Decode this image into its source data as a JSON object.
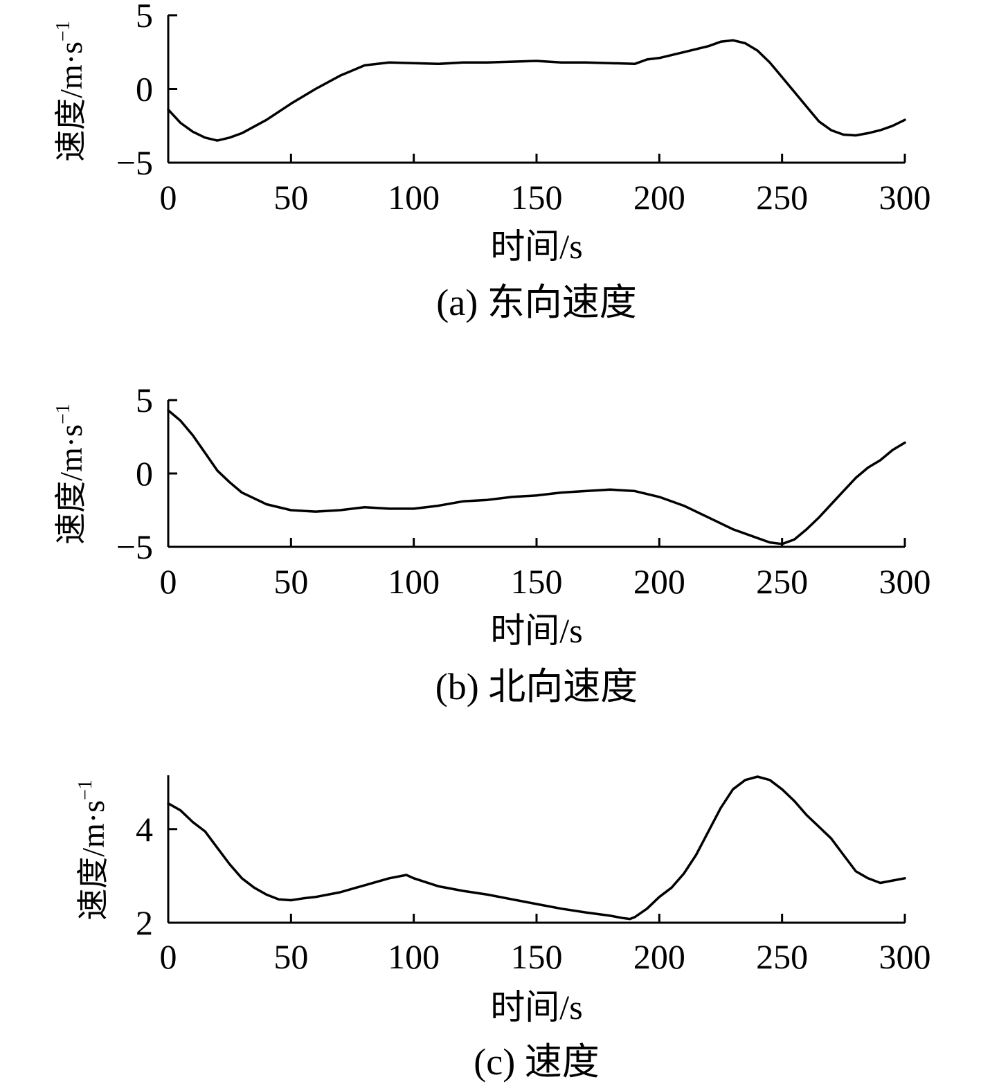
{
  "chart_data": [
    {
      "type": "line",
      "caption": "(a) 东向速度",
      "xlabel": "时间/s",
      "ylabel": "速度/m·s",
      "ylabel_sup": "−1",
      "xlim": [
        0,
        300
      ],
      "ylim": [
        -5,
        5
      ],
      "xticks": [
        0,
        50,
        100,
        150,
        200,
        250,
        300
      ],
      "xtick_labels": [
        "0",
        "50",
        "100",
        "150",
        "200",
        "250",
        "300"
      ],
      "yticks": [
        -5,
        0,
        5
      ],
      "ytick_labels": [
        "−5",
        "0",
        "5"
      ],
      "series": [
        {
          "x": [
            0,
            5,
            10,
            15,
            20,
            25,
            30,
            40,
            50,
            60,
            70,
            80,
            90,
            100,
            110,
            120,
            130,
            140,
            150,
            160,
            170,
            180,
            190,
            195,
            200,
            210,
            220,
            225,
            230,
            235,
            240,
            245,
            250,
            255,
            260,
            265,
            270,
            275,
            280,
            285,
            290,
            295,
            300
          ],
          "y": [
            -1.4,
            -2.3,
            -2.9,
            -3.3,
            -3.5,
            -3.3,
            -3.0,
            -2.1,
            -1.0,
            0.0,
            0.9,
            1.6,
            1.8,
            1.75,
            1.7,
            1.8,
            1.8,
            1.85,
            1.9,
            1.8,
            1.8,
            1.75,
            1.7,
            2.0,
            2.1,
            2.5,
            2.9,
            3.2,
            3.3,
            3.1,
            2.6,
            1.8,
            0.8,
            -0.2,
            -1.2,
            -2.2,
            -2.8,
            -3.1,
            -3.15,
            -3.0,
            -2.8,
            -2.5,
            -2.1
          ]
        }
      ]
    },
    {
      "type": "line",
      "caption": "(b) 北向速度",
      "xlabel": "时间/s",
      "ylabel": "速度/m·s",
      "ylabel_sup": "−1",
      "xlim": [
        0,
        300
      ],
      "ylim": [
        -5,
        5
      ],
      "xticks": [
        0,
        50,
        100,
        150,
        200,
        250,
        300
      ],
      "xtick_labels": [
        "0",
        "50",
        "100",
        "150",
        "200",
        "250",
        "300"
      ],
      "yticks": [
        -5,
        0,
        5
      ],
      "ytick_labels": [
        "−5",
        "0",
        "5"
      ],
      "series": [
        {
          "x": [
            0,
            5,
            10,
            15,
            20,
            25,
            30,
            40,
            50,
            60,
            70,
            80,
            90,
            100,
            110,
            120,
            130,
            140,
            150,
            160,
            170,
            180,
            190,
            200,
            210,
            220,
            230,
            240,
            245,
            250,
            255,
            260,
            265,
            270,
            275,
            280,
            285,
            290,
            295,
            300
          ],
          "y": [
            4.3,
            3.6,
            2.6,
            1.4,
            0.2,
            -0.6,
            -1.3,
            -2.1,
            -2.5,
            -2.6,
            -2.5,
            -2.3,
            -2.4,
            -2.4,
            -2.2,
            -1.9,
            -1.8,
            -1.6,
            -1.5,
            -1.3,
            -1.2,
            -1.1,
            -1.2,
            -1.6,
            -2.2,
            -3.0,
            -3.8,
            -4.4,
            -4.7,
            -4.8,
            -4.5,
            -3.8,
            -3.0,
            -2.1,
            -1.2,
            -0.3,
            0.4,
            0.9,
            1.6,
            2.1
          ]
        }
      ]
    },
    {
      "type": "line",
      "caption": "(c) 速度",
      "xlabel": "时间/s",
      "ylabel": "速度/m·s",
      "ylabel_sup": "−1",
      "xlim": [
        0,
        300
      ],
      "ylim": [
        2,
        5.15
      ],
      "xticks": [
        0,
        50,
        100,
        150,
        200,
        250,
        300
      ],
      "xtick_labels": [
        "0",
        "50",
        "100",
        "150",
        "200",
        "250",
        "300"
      ],
      "yticks": [
        2,
        4
      ],
      "ytick_labels": [
        "2",
        "4"
      ],
      "series": [
        {
          "x": [
            0,
            5,
            10,
            15,
            20,
            25,
            30,
            35,
            40,
            45,
            50,
            55,
            60,
            70,
            80,
            90,
            97,
            100,
            110,
            120,
            130,
            140,
            150,
            160,
            170,
            180,
            185,
            188,
            190,
            195,
            200,
            205,
            210,
            215,
            220,
            225,
            230,
            235,
            240,
            245,
            250,
            255,
            260,
            265,
            270,
            275,
            280,
            285,
            290,
            295,
            300
          ],
          "y": [
            4.55,
            4.4,
            4.15,
            3.95,
            3.6,
            3.25,
            2.95,
            2.75,
            2.6,
            2.5,
            2.48,
            2.52,
            2.55,
            2.65,
            2.8,
            2.95,
            3.02,
            2.95,
            2.78,
            2.68,
            2.6,
            2.5,
            2.4,
            2.3,
            2.22,
            2.15,
            2.1,
            2.08,
            2.12,
            2.3,
            2.55,
            2.75,
            3.05,
            3.45,
            3.95,
            4.45,
            4.85,
            5.05,
            5.12,
            5.05,
            4.85,
            4.6,
            4.3,
            4.05,
            3.8,
            3.45,
            3.1,
            2.95,
            2.85,
            2.9,
            2.95
          ]
        }
      ]
    }
  ]
}
